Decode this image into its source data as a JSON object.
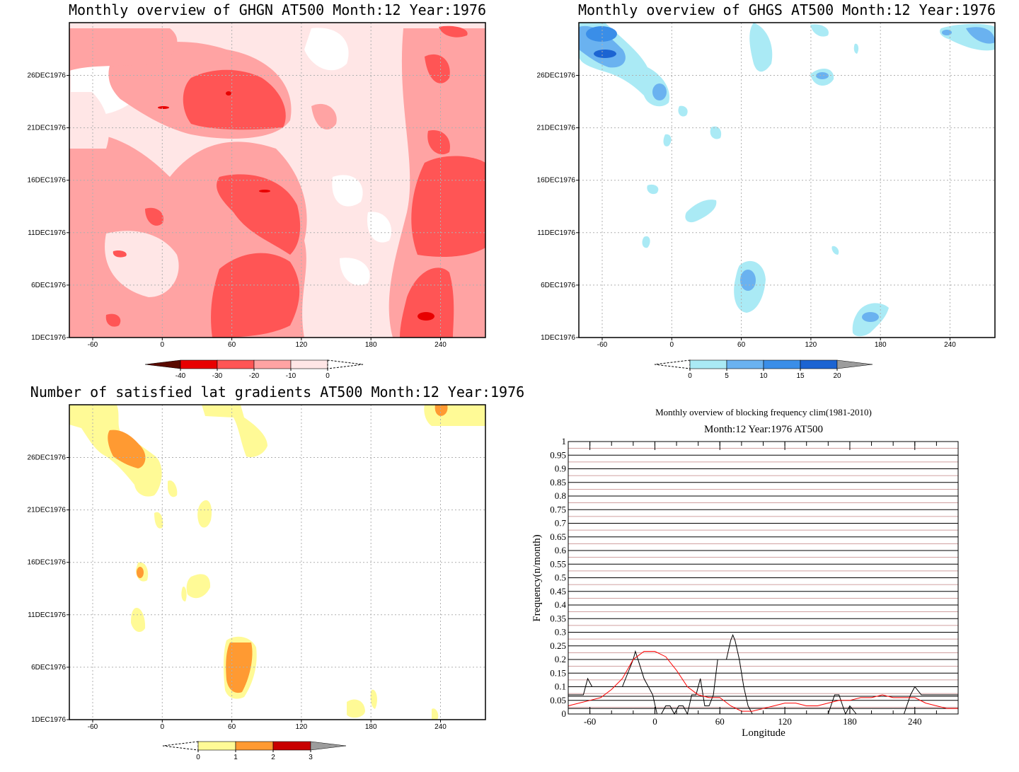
{
  "panels": {
    "ghgn": {
      "title": "Monthly overview of GHGN AT500 Month:12 Year:1976",
      "colorbar_labels": [
        "-40",
        "-30",
        "-20",
        "-10",
        "0"
      ],
      "colors": [
        "#5a0a00",
        "#e80000",
        "#ff5555",
        "#ffa3a3",
        "#ffe6e6"
      ]
    },
    "ghgs": {
      "title": "Monthly overview of GHGS AT500 Month:12 Year:1976",
      "colorbar_labels": [
        "0",
        "5",
        "10",
        "15",
        "20"
      ],
      "colors": [
        "#aaeaf5",
        "#6ab2f0",
        "#3a8ee8",
        "#1c64d2",
        "#9c9c9c"
      ]
    },
    "gradients": {
      "title": "Number of satisfied lat gradients AT500 Month:12 Year:1976",
      "colorbar_labels": [
        "0",
        "1",
        "2",
        "3"
      ],
      "colors": [
        "#fffa96",
        "#ff9a32",
        "#c80000",
        "#9c9c9c"
      ]
    }
  },
  "map_axes": {
    "x_ticks": [
      "-60",
      "0",
      "60",
      "120",
      "180",
      "240"
    ],
    "y_ticks": [
      "1DEC1976",
      "6DEC1976",
      "11DEC1976",
      "16DEC1976",
      "21DEC1976",
      "26DEC1976"
    ]
  },
  "chart_data": {
    "type": "line",
    "title": "Monthly overview of blocking frequency clim(1981-2010)",
    "subtitle": "Month:12 Year:1976  AT500",
    "xlabel": "Longitude",
    "ylabel": "Frequency(n/month)",
    "xlim": [
      -80,
      280
    ],
    "ylim": [
      0,
      1
    ],
    "x_ticks": [
      -60,
      0,
      60,
      120,
      180,
      240
    ],
    "y_ticks": [
      "0",
      "0.05",
      "0.1",
      "0.15",
      "0.2",
      "0.25",
      "0.3",
      "0.35",
      "0.4",
      "0.45",
      "0.5",
      "0.55",
      "0.6",
      "0.65",
      "0.7",
      "0.75",
      "0.8",
      "0.85",
      "0.9",
      "0.95",
      "1"
    ],
    "series": [
      {
        "color": "#000000",
        "x": [
          -80,
          -66,
          -62,
          -58,
          -50,
          -40,
          -30,
          -20,
          -18,
          -14,
          -10,
          -6,
          -2,
          2,
          6,
          10,
          14,
          18,
          22,
          26,
          30,
          34,
          38,
          42,
          46,
          50,
          54,
          58,
          62,
          66,
          70,
          72,
          74,
          78,
          82,
          86,
          90,
          94,
          100,
          110,
          120,
          130,
          140,
          150,
          160,
          166,
          170,
          176,
          180,
          186,
          190,
          196,
          200,
          210,
          220,
          230,
          236,
          240,
          246,
          250,
          280
        ],
        "y": [
          0.07,
          0.07,
          0.13,
          0.1,
          0.1,
          0.1,
          0.1,
          0.2,
          0.23,
          0.18,
          0.13,
          0.1,
          0.07,
          0.0,
          0.0,
          0.03,
          0.03,
          0.0,
          0.03,
          0.03,
          0.0,
          0.07,
          0.07,
          0.13,
          0.03,
          0.03,
          0.07,
          0.2,
          0.2,
          0.2,
          0.27,
          0.29,
          0.27,
          0.2,
          0.1,
          0.03,
          0.0,
          0.0,
          0.0,
          0.0,
          0.0,
          0.0,
          0.0,
          0.0,
          0.0,
          0.07,
          0.07,
          0.0,
          0.03,
          0.0,
          0.0,
          0.0,
          0.0,
          0.0,
          0.0,
          0.0,
          0.07,
          0.1,
          0.07,
          0.07,
          0.07
        ]
      },
      {
        "color": "#ff0000",
        "x": [
          -80,
          -70,
          -60,
          -50,
          -40,
          -30,
          -20,
          -10,
          0,
          10,
          20,
          30,
          40,
          50,
          60,
          70,
          80,
          90,
          100,
          110,
          120,
          130,
          140,
          150,
          160,
          170,
          180,
          190,
          200,
          210,
          220,
          230,
          240,
          250,
          260,
          270,
          280
        ],
        "y": [
          0.03,
          0.04,
          0.05,
          0.06,
          0.09,
          0.13,
          0.2,
          0.23,
          0.23,
          0.21,
          0.16,
          0.1,
          0.07,
          0.06,
          0.06,
          0.03,
          0.01,
          0.01,
          0.02,
          0.03,
          0.04,
          0.04,
          0.03,
          0.03,
          0.04,
          0.05,
          0.05,
          0.06,
          0.06,
          0.07,
          0.06,
          0.06,
          0.06,
          0.04,
          0.03,
          0.02,
          0.02
        ]
      }
    ]
  }
}
